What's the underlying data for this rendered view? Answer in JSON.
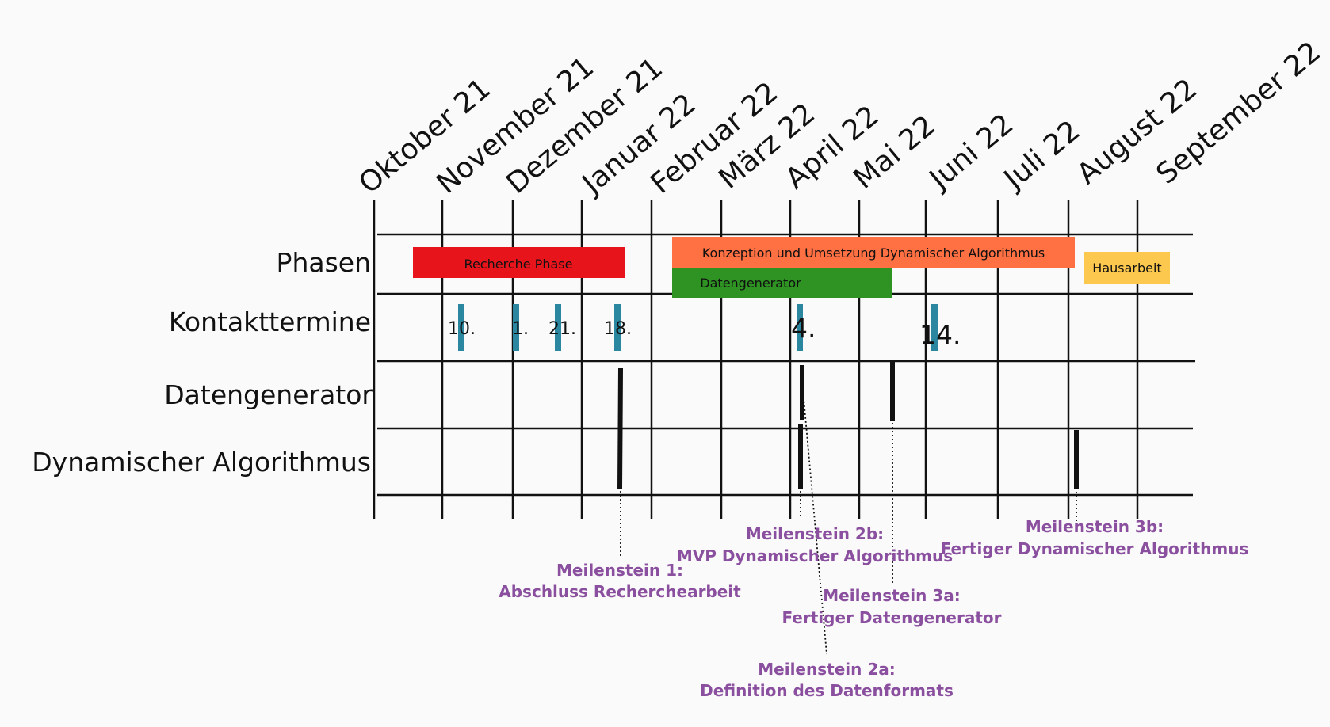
{
  "months": [
    "Oktober 21",
    "November 21",
    "Dezember 21",
    "Januar 22",
    "Februar 22",
    "März 22",
    "April 22",
    "Mai 22",
    "Juni 22",
    "Juli 22",
    "August 22",
    "September 22"
  ],
  "rows": {
    "phasen": "Phasen",
    "kontakttermine": "Kontakttermine",
    "datengenerator": "Datengenerator",
    "dynamischer": "Dynamischer Algorithmus"
  },
  "phases": {
    "recherche": {
      "label": "Recherche Phase",
      "color": "#e8141c"
    },
    "konzeption": {
      "label": "Konzeption und Umsetzung Dynamischer Algorithmus",
      "color": "#ff7043"
    },
    "datengenerator": {
      "label": "Datengenerator",
      "color": "#2e9323"
    },
    "hausarbeit": {
      "label": "Hausarbeit",
      "color": "#fdc84e"
    }
  },
  "contacts": [
    "10.",
    "1.",
    "21.",
    "18.",
    "4.",
    "14."
  ],
  "contact_color": "#2b86a0",
  "milestones": {
    "m1": {
      "title": "Meilenstein 1:",
      "subtitle": "Abschluss Recherchearbeit"
    },
    "m2b": {
      "title": "Meilenstein 2b:",
      "subtitle": "MVP Dynamischer Algorithmus"
    },
    "m3a": {
      "title": "Meilenstein 3a:",
      "subtitle": "Fertiger Datengenerator"
    },
    "m2a": {
      "title": "Meilenstein 2a:",
      "subtitle": "Definition des Datenformats"
    },
    "m3b": {
      "title": "Meilenstein 3b:",
      "subtitle": "Fertiger Dynamischer Algorithmus"
    }
  },
  "milestone_color": "#8a4f9e"
}
